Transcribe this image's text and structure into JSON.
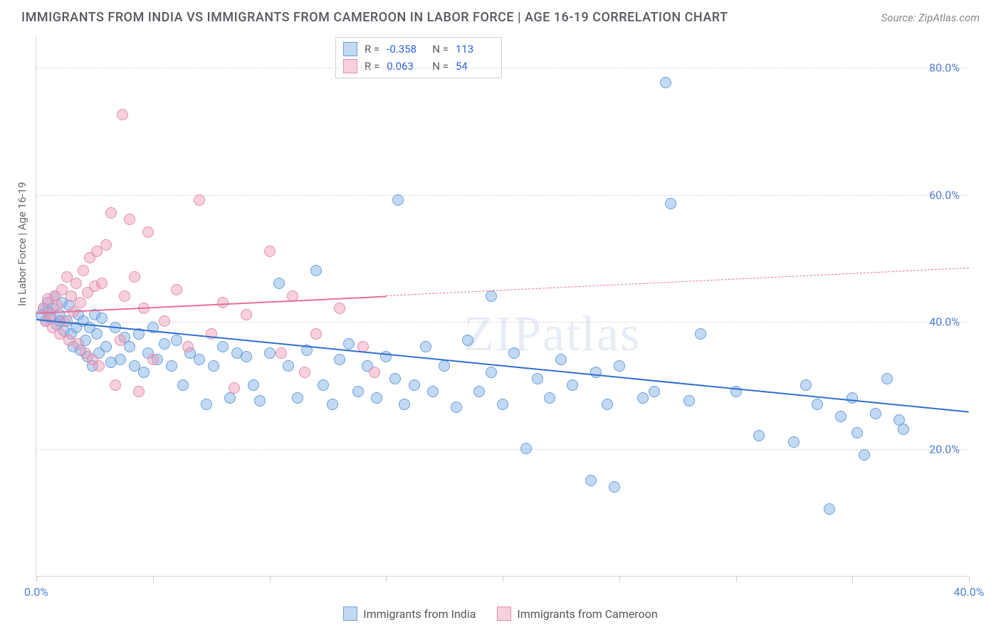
{
  "title": "IMMIGRANTS FROM INDIA VS IMMIGRANTS FROM CAMEROON IN LABOR FORCE | AGE 16-19 CORRELATION CHART",
  "source": "Source: ZipAtlas.com",
  "watermark": "ZIPatlas",
  "ylabel": "In Labor Force | Age 16-19",
  "chart": {
    "type": "scatter",
    "xlim": [
      0,
      40
    ],
    "ylim": [
      0,
      85
    ],
    "ytick_values": [
      20,
      40,
      60,
      80
    ],
    "ytick_labels": [
      "20.0%",
      "40.0%",
      "60.0%",
      "80.0%"
    ],
    "xtick_values": [
      0,
      5,
      10,
      15,
      20,
      25,
      30,
      35,
      40
    ],
    "xtick_labels_shown": {
      "0": "0.0%",
      "40": "40.0%"
    },
    "grid_color": "#d8d8d8",
    "background": "#ffffff",
    "point_radius": 8,
    "series": [
      {
        "id": "india",
        "label": "Immigrants from India",
        "fill": "rgba(120,170,230,0.45)",
        "stroke": "#6a9fd8",
        "R": "-0.358",
        "N": "113",
        "trend": {
          "x1": 0,
          "y1": 40.5,
          "x2": 40,
          "y2": 26.0,
          "solid_until_x": 40,
          "color": "#2f6fd0",
          "width": 2
        },
        "points": [
          [
            0.2,
            41
          ],
          [
            0.3,
            42
          ],
          [
            0.4,
            40
          ],
          [
            0.5,
            43
          ],
          [
            0.5,
            41.5
          ],
          [
            0.6,
            40.5
          ],
          [
            0.7,
            42
          ],
          [
            0.8,
            44
          ],
          [
            0.9,
            39.5
          ],
          [
            1.0,
            41
          ],
          [
            1.0,
            40
          ],
          [
            1.1,
            43
          ],
          [
            1.2,
            38.5
          ],
          [
            1.3,
            40
          ],
          [
            1.4,
            42.5
          ],
          [
            1.5,
            38
          ],
          [
            1.6,
            36
          ],
          [
            1.7,
            39
          ],
          [
            1.8,
            41
          ],
          [
            1.9,
            35.5
          ],
          [
            2.0,
            40
          ],
          [
            2.1,
            37
          ],
          [
            2.2,
            34.5
          ],
          [
            2.3,
            39
          ],
          [
            2.4,
            33
          ],
          [
            2.5,
            41
          ],
          [
            2.6,
            38
          ],
          [
            2.7,
            35
          ],
          [
            2.8,
            40.5
          ],
          [
            3.0,
            36
          ],
          [
            3.2,
            33.5
          ],
          [
            3.4,
            39
          ],
          [
            3.6,
            34
          ],
          [
            3.8,
            37.5
          ],
          [
            4.0,
            36
          ],
          [
            4.2,
            33
          ],
          [
            4.4,
            38
          ],
          [
            4.6,
            32
          ],
          [
            4.8,
            35
          ],
          [
            5.0,
            39
          ],
          [
            5.2,
            34
          ],
          [
            5.5,
            36.5
          ],
          [
            5.8,
            33
          ],
          [
            6.0,
            37
          ],
          [
            6.3,
            30
          ],
          [
            6.6,
            35
          ],
          [
            7.0,
            34
          ],
          [
            7.3,
            27
          ],
          [
            7.6,
            33
          ],
          [
            8.0,
            36
          ],
          [
            8.3,
            28
          ],
          [
            8.6,
            35
          ],
          [
            9.0,
            34.5
          ],
          [
            9.3,
            30
          ],
          [
            9.6,
            27.5
          ],
          [
            10.0,
            35
          ],
          [
            10.4,
            46
          ],
          [
            10.8,
            33
          ],
          [
            11.2,
            28
          ],
          [
            11.6,
            35.5
          ],
          [
            12.0,
            48
          ],
          [
            12.3,
            30
          ],
          [
            12.7,
            27
          ],
          [
            13.0,
            34
          ],
          [
            13.4,
            36.5
          ],
          [
            13.8,
            29
          ],
          [
            14.2,
            33
          ],
          [
            14.6,
            28
          ],
          [
            15.0,
            34.5
          ],
          [
            15.4,
            31
          ],
          [
            15.5,
            59
          ],
          [
            15.8,
            27
          ],
          [
            16.2,
            30
          ],
          [
            16.7,
            36
          ],
          [
            17.0,
            29
          ],
          [
            17.5,
            33
          ],
          [
            18.0,
            26.5
          ],
          [
            18.5,
            37
          ],
          [
            19.0,
            29
          ],
          [
            19.5,
            32
          ],
          [
            19.5,
            44
          ],
          [
            20.0,
            27
          ],
          [
            20.5,
            35
          ],
          [
            21.0,
            20
          ],
          [
            21.5,
            31
          ],
          [
            22.0,
            28
          ],
          [
            22.5,
            34
          ],
          [
            23.0,
            30
          ],
          [
            23.8,
            15
          ],
          [
            24.0,
            32
          ],
          [
            24.5,
            27
          ],
          [
            24.8,
            14
          ],
          [
            25.0,
            33
          ],
          [
            26.0,
            28
          ],
          [
            26.5,
            29
          ],
          [
            27.0,
            77.5
          ],
          [
            27.2,
            58.5
          ],
          [
            28.0,
            27.5
          ],
          [
            28.5,
            38
          ],
          [
            30.0,
            29
          ],
          [
            31.0,
            22
          ],
          [
            32.5,
            21
          ],
          [
            33.0,
            30
          ],
          [
            33.5,
            27
          ],
          [
            34.0,
            10.5
          ],
          [
            34.5,
            25
          ],
          [
            35.0,
            28
          ],
          [
            35.2,
            22.5
          ],
          [
            35.5,
            19
          ],
          [
            36.0,
            25.5
          ],
          [
            36.5,
            31
          ],
          [
            37.0,
            24.5
          ],
          [
            37.2,
            23
          ]
        ]
      },
      {
        "id": "cameroon",
        "label": "Immigrants from Cameroon",
        "fill": "rgba(240,150,180,0.45)",
        "stroke": "#e290ae",
        "R": "0.063",
        "N": "54",
        "trend": {
          "x1": 0,
          "y1": 41.5,
          "x2": 40,
          "y2": 48.5,
          "solid_until_x": 15,
          "color": "#e86f9a",
          "width": 2
        },
        "points": [
          [
            0.3,
            42
          ],
          [
            0.4,
            40
          ],
          [
            0.5,
            43.5
          ],
          [
            0.6,
            41
          ],
          [
            0.7,
            39
          ],
          [
            0.8,
            44
          ],
          [
            0.9,
            42.5
          ],
          [
            1.0,
            38
          ],
          [
            1.1,
            45
          ],
          [
            1.2,
            40
          ],
          [
            1.3,
            47
          ],
          [
            1.4,
            37
          ],
          [
            1.5,
            44
          ],
          [
            1.6,
            41.5
          ],
          [
            1.7,
            46
          ],
          [
            1.8,
            36.5
          ],
          [
            1.9,
            43
          ],
          [
            2.0,
            48
          ],
          [
            2.1,
            35
          ],
          [
            2.2,
            44.5
          ],
          [
            2.3,
            50
          ],
          [
            2.4,
            34
          ],
          [
            2.5,
            45.5
          ],
          [
            2.6,
            51
          ],
          [
            2.7,
            33
          ],
          [
            2.8,
            46
          ],
          [
            3.0,
            52
          ],
          [
            3.2,
            57
          ],
          [
            3.4,
            30
          ],
          [
            3.6,
            37
          ],
          [
            3.7,
            72.5
          ],
          [
            3.8,
            44
          ],
          [
            4.0,
            56
          ],
          [
            4.2,
            47
          ],
          [
            4.4,
            29
          ],
          [
            4.6,
            42
          ],
          [
            4.8,
            54
          ],
          [
            5.0,
            34
          ],
          [
            5.5,
            40
          ],
          [
            6.0,
            45
          ],
          [
            6.5,
            36
          ],
          [
            7.0,
            59
          ],
          [
            7.5,
            38
          ],
          [
            8.0,
            43
          ],
          [
            8.5,
            29.5
          ],
          [
            9.0,
            41
          ],
          [
            10.0,
            51
          ],
          [
            10.5,
            35
          ],
          [
            11.0,
            44
          ],
          [
            11.5,
            32
          ],
          [
            12.0,
            38
          ],
          [
            13.0,
            42
          ],
          [
            14.0,
            36
          ],
          [
            14.5,
            32
          ]
        ]
      }
    ]
  },
  "stats_box": {
    "rows": [
      {
        "swatch_fill": "rgba(120,170,230,0.45)",
        "swatch_stroke": "#6a9fd8",
        "R": "-0.358",
        "N": "113"
      },
      {
        "swatch_fill": "rgba(240,150,180,0.45)",
        "swatch_stroke": "#e290ae",
        "R": "0.063",
        "N": "54"
      }
    ]
  },
  "legend": {
    "items": [
      {
        "swatch_fill": "rgba(120,170,230,0.45)",
        "swatch_stroke": "#6a9fd8",
        "label": "Immigrants from India"
      },
      {
        "swatch_fill": "rgba(240,150,180,0.45)",
        "swatch_stroke": "#e290ae",
        "label": "Immigrants from Cameroon"
      }
    ]
  }
}
